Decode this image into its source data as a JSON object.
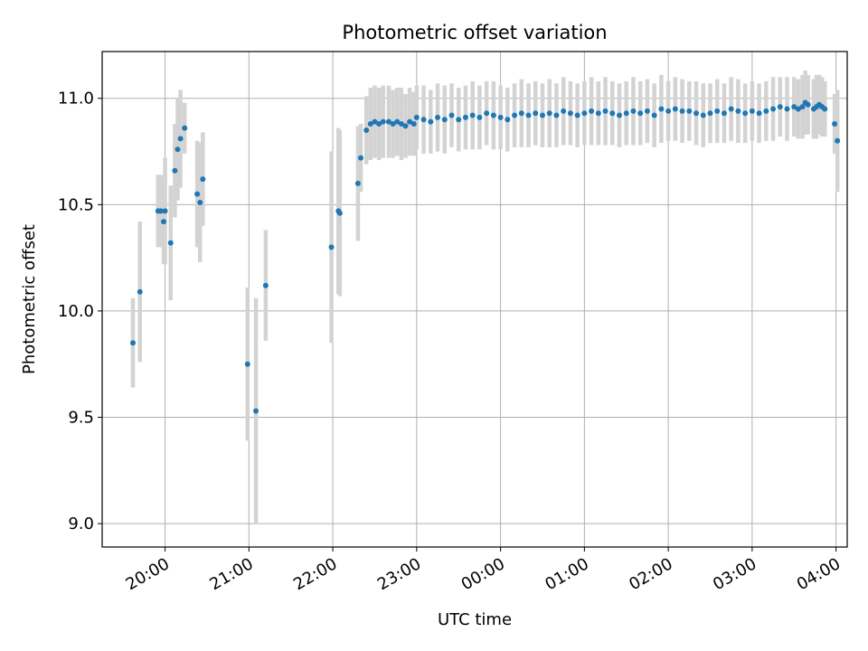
{
  "chart_data": {
    "type": "scatter",
    "title": "Photometric offset variation",
    "xlabel": "UTC time",
    "ylabel": "Photometric offset",
    "x_axis": "time",
    "xlim": [
      "19:15",
      "04:08"
    ],
    "ylim": [
      8.89,
      11.22
    ],
    "x_ticks": [
      "20:00",
      "21:00",
      "22:00",
      "23:00",
      "00:00",
      "01:00",
      "02:00",
      "03:00",
      "04:00"
    ],
    "y_ticks": [
      "9.0",
      "9.5",
      "10.0",
      "10.5",
      "11.0"
    ],
    "grid": true,
    "colors": {
      "points": "#1f77b4",
      "error_bars": "#d3d3d3",
      "grid": "#b0b0b0"
    },
    "series": [
      {
        "x": [
          "19:37",
          "19:42",
          "19:55",
          "19:57",
          "19:59",
          "20:00",
          "20:04",
          "20:07",
          "20:09",
          "20:11",
          "20:14",
          "20:23",
          "20:25",
          "20:27",
          "20:59",
          "21:05",
          "21:12",
          "21:59",
          "22:04",
          "22:05",
          "22:18",
          "22:20",
          "22:24",
          "22:27",
          "22:30",
          "22:33",
          "22:36",
          "22:40",
          "22:43",
          "22:46",
          "22:49",
          "22:52",
          "22:55",
          "22:58",
          "23:00",
          "23:05",
          "23:10",
          "23:15",
          "23:20",
          "23:25",
          "23:30",
          "23:35",
          "23:40",
          "23:45",
          "23:50",
          "23:55",
          "00:00",
          "00:05",
          "00:10",
          "00:15",
          "00:20",
          "00:25",
          "00:30",
          "00:35",
          "00:40",
          "00:45",
          "00:50",
          "00:55",
          "01:00",
          "01:05",
          "01:10",
          "01:15",
          "01:20",
          "01:25",
          "01:30",
          "01:35",
          "01:40",
          "01:45",
          "01:50",
          "01:55",
          "02:00",
          "02:05",
          "02:10",
          "02:15",
          "02:20",
          "02:25",
          "02:30",
          "02:35",
          "02:40",
          "02:45",
          "02:50",
          "02:55",
          "03:00",
          "03:05",
          "03:10",
          "03:15",
          "03:20",
          "03:25",
          "03:30",
          "03:33",
          "03:36",
          "03:38",
          "03:40",
          "03:44",
          "03:46",
          "03:48",
          "03:50",
          "03:52",
          "03:59",
          "04:01"
        ],
        "y": [
          9.85,
          10.09,
          10.47,
          10.47,
          10.42,
          10.47,
          10.32,
          10.66,
          10.76,
          10.81,
          10.86,
          10.55,
          10.51,
          10.62,
          9.75,
          9.53,
          10.12,
          10.3,
          10.47,
          10.46,
          10.6,
          10.72,
          10.85,
          10.88,
          10.89,
          10.88,
          10.89,
          10.89,
          10.88,
          10.89,
          10.88,
          10.87,
          10.89,
          10.88,
          10.91,
          10.9,
          10.89,
          10.91,
          10.9,
          10.92,
          10.9,
          10.91,
          10.92,
          10.91,
          10.93,
          10.92,
          10.91,
          10.9,
          10.92,
          10.93,
          10.92,
          10.93,
          10.92,
          10.93,
          10.92,
          10.94,
          10.93,
          10.92,
          10.93,
          10.94,
          10.93,
          10.94,
          10.93,
          10.92,
          10.93,
          10.94,
          10.93,
          10.94,
          10.92,
          10.95,
          10.94,
          10.95,
          10.94,
          10.94,
          10.93,
          10.92,
          10.93,
          10.94,
          10.93,
          10.95,
          10.94,
          10.93,
          10.94,
          10.93,
          10.94,
          10.95,
          10.96,
          10.95,
          10.96,
          10.95,
          10.96,
          10.98,
          10.97,
          10.95,
          10.96,
          10.97,
          10.96,
          10.95,
          10.88,
          10.8
        ],
        "err": [
          0.21,
          0.33,
          0.17,
          0.17,
          0.2,
          0.25,
          0.27,
          0.22,
          0.24,
          0.23,
          0.12,
          0.25,
          0.28,
          0.22,
          0.36,
          0.53,
          0.26,
          0.45,
          0.39,
          0.39,
          0.27,
          0.16,
          0.16,
          0.17,
          0.17,
          0.17,
          0.17,
          0.17,
          0.16,
          0.16,
          0.17,
          0.15,
          0.16,
          0.15,
          0.15,
          0.16,
          0.15,
          0.16,
          0.16,
          0.15,
          0.15,
          0.15,
          0.16,
          0.15,
          0.15,
          0.16,
          0.15,
          0.15,
          0.15,
          0.16,
          0.15,
          0.15,
          0.15,
          0.16,
          0.15,
          0.16,
          0.15,
          0.15,
          0.15,
          0.16,
          0.15,
          0.16,
          0.15,
          0.15,
          0.15,
          0.16,
          0.15,
          0.15,
          0.15,
          0.16,
          0.14,
          0.15,
          0.15,
          0.14,
          0.15,
          0.15,
          0.14,
          0.15,
          0.14,
          0.15,
          0.15,
          0.14,
          0.14,
          0.14,
          0.14,
          0.15,
          0.14,
          0.15,
          0.14,
          0.14,
          0.15,
          0.15,
          0.14,
          0.14,
          0.15,
          0.14,
          0.14,
          0.13,
          0.14,
          0.24
        ]
      }
    ]
  }
}
